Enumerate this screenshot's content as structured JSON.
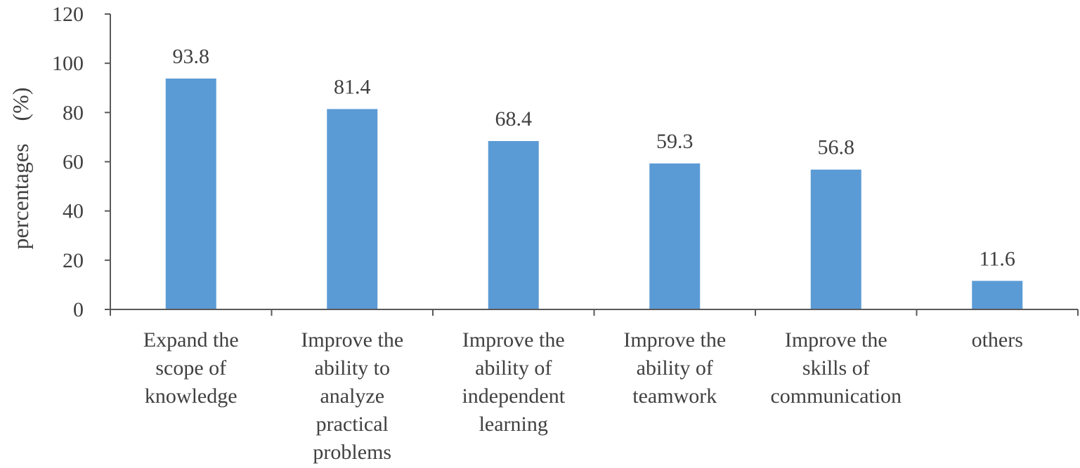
{
  "chart_data": {
    "type": "bar",
    "categories": [
      [
        "Expand the",
        "scope of",
        "knowledge"
      ],
      [
        "Improve the",
        "ability to",
        "analyze",
        "practical",
        "problems"
      ],
      [
        "Improve the",
        "ability of",
        "independent",
        "learning"
      ],
      [
        "Improve the",
        "ability of",
        "teamwork"
      ],
      [
        "Improve the",
        "skills of",
        "communication"
      ],
      [
        "others"
      ]
    ],
    "values": [
      93.8,
      81.4,
      68.4,
      59.3,
      56.8,
      11.6
    ],
    "value_labels": [
      "93.8",
      "81.4",
      "68.4",
      "59.3",
      "56.8",
      "11.6"
    ],
    "ylabel": "percentages　(%)",
    "xlabel": "",
    "ylim": [
      0,
      120
    ],
    "yticks": [
      0,
      20,
      40,
      60,
      80,
      100,
      120
    ],
    "grid": false,
    "legend": "none",
    "bar_color": "#5b9bd5",
    "axis_color": "#595959",
    "text_color": "#404040"
  }
}
